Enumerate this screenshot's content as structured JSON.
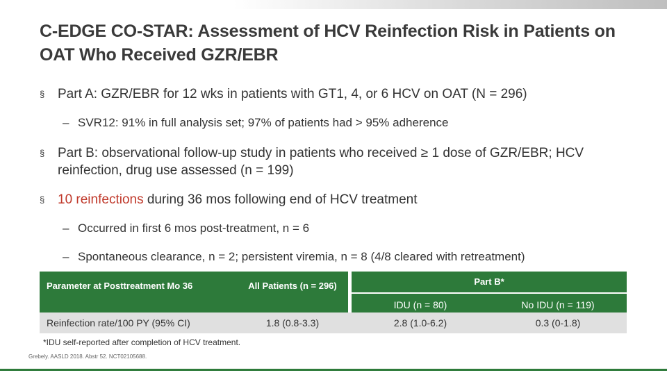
{
  "title": "C-EDGE CO-STAR: Assessment of HCV Reinfection Risk in Patients on OAT Who Received GZR/EBR",
  "bullets": {
    "marker": "§",
    "dash": "–",
    "part_a": "Part A: GZR/EBR for 12 wks in patients with GT1, 4, or 6 HCV on OAT (N = 296)",
    "svr12": "SVR12: 91% in full analysis set; 97% of patients had > 95% adherence",
    "part_b": "Part B: observational follow-up study in patients who received ≥ 1 dose of GZR/EBR; HCV reinfection, drug use assessed (n = 199)",
    "reinfections_highlight": "10 reinfections",
    "reinfections_rest": " during 36 mos following end of HCV treatment",
    "occurred": "Occurred in first 6 mos post-treatment, n = 6",
    "spontaneous": "Spontaneous clearance, n = 2; persistent viremia, n = 8 (4/8 cleared with retreatment)"
  },
  "table": {
    "col_param": "Parameter at Posttreatment Mo 36",
    "col_all": "All Patients (n = 296)",
    "col_partb": "Part B*",
    "col_idu": "IDU (n = 80)",
    "col_noidu": "No IDU (n = 119)",
    "row": {
      "param": "Reinfection rate/100 PY (95% CI)",
      "all": "1.8 (0.8-3.3)",
      "idu": "2.8 (1.0-6.2)",
      "noidu": "0.3 (0-1.8)"
    }
  },
  "footnote": "*IDU self-reported after completion of HCV treatment.",
  "citation": "Grebely. AASLD 2018. Abstr 52. NCT02105688.",
  "colors": {
    "accent_green": "#2d7a3a",
    "highlight_red": "#c0392b",
    "row_gray": "#e0e0e0"
  }
}
